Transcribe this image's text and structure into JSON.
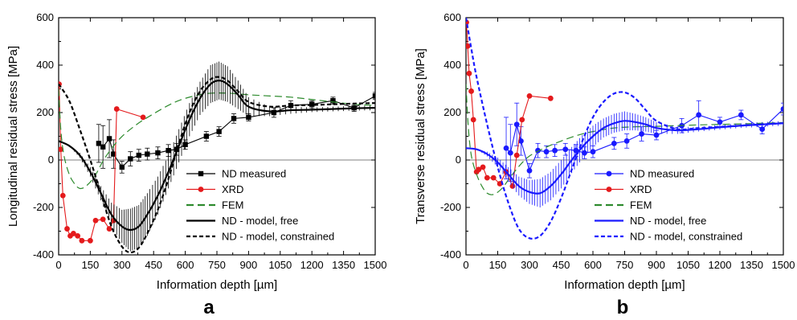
{
  "chart_data": [
    {
      "type": "line",
      "panel_label": "a",
      "xlabel": "Information depth [µm]",
      "ylabel": "Longitudinal residual stress [MPa]",
      "xlim": [
        0,
        1500
      ],
      "ylim": [
        -400,
        600
      ],
      "xticks": [
        0,
        150,
        300,
        450,
        600,
        750,
        900,
        1050,
        1200,
        1350,
        1500
      ],
      "yticks": [
        -400,
        -200,
        0,
        200,
        400,
        600
      ],
      "legend_position": "lower-right",
      "series": [
        {
          "name": "ND measured",
          "color": "#000000",
          "style": "solid",
          "marker": "square",
          "errorbars": true,
          "x": [
            190,
            210,
            240,
            260,
            300,
            340,
            380,
            420,
            470,
            520,
            560,
            600,
            700,
            760,
            830,
            900,
            1020,
            1100,
            1200,
            1300,
            1400,
            1500
          ],
          "y": [
            70,
            55,
            90,
            25,
            -30,
            5,
            20,
            25,
            30,
            40,
            45,
            65,
            100,
            120,
            175,
            180,
            200,
            230,
            235,
            250,
            220,
            270
          ],
          "err": [
            80,
            90,
            80,
            60,
            25,
            30,
            25,
            25,
            25,
            25,
            25,
            20,
            20,
            20,
            20,
            15,
            20,
            20,
            15,
            15,
            15,
            15
          ]
        },
        {
          "name": "XRD",
          "color": "#e41a1c",
          "style": "solid",
          "marker": "circle",
          "x": [
            2,
            10,
            20,
            40,
            55,
            70,
            90,
            110,
            150,
            175,
            210,
            240,
            260,
            275,
            400
          ],
          "y": [
            320,
            45,
            -150,
            -290,
            -320,
            -310,
            -320,
            -340,
            -340,
            -255,
            -250,
            -290,
            -255,
            215,
            180
          ]
        },
        {
          "name": "FEM",
          "color": "#2e8b2e",
          "style": "dashed",
          "x": [
            0,
            10,
            25,
            50,
            75,
            100,
            130,
            170,
            220,
            290,
            370,
            450,
            530,
            600,
            700,
            800,
            900,
            1000,
            1100,
            1200,
            1300,
            1400,
            1500
          ],
          "y": [
            300,
            130,
            20,
            -60,
            -100,
            -120,
            -110,
            -70,
            10,
            90,
            150,
            195,
            235,
            260,
            280,
            282,
            275,
            270,
            265,
            255,
            245,
            235,
            230
          ]
        },
        {
          "name": "ND - model, free",
          "color": "#000000",
          "style": "solid",
          "errorbars": true,
          "x": [
            0,
            50,
            100,
            150,
            200,
            250,
            300,
            340,
            380,
            420,
            470,
            520,
            570,
            620,
            670,
            720,
            760,
            800,
            850,
            900,
            1000,
            1100,
            1200,
            1300,
            1400,
            1500
          ],
          "y": [
            80,
            60,
            20,
            -50,
            -140,
            -230,
            -280,
            -295,
            -280,
            -230,
            -150,
            -50,
            60,
            170,
            260,
            320,
            335,
            320,
            275,
            225,
            205,
            210,
            212,
            215,
            218,
            220
          ],
          "err": [
            0,
            0,
            10,
            20,
            30,
            50,
            70,
            90,
            90,
            90,
            80,
            70,
            70,
            70,
            70,
            80,
            80,
            75,
            60,
            40,
            20,
            15,
            10,
            10,
            10,
            10
          ]
        },
        {
          "name": "ND - model, constrained",
          "color": "#000000",
          "style": "dashed",
          "x": [
            0,
            50,
            100,
            150,
            200,
            250,
            300,
            340,
            380,
            420,
            470,
            520,
            570,
            620,
            670,
            720,
            760,
            800,
            850,
            900,
            1000,
            1100,
            1200,
            1300,
            1400,
            1500
          ],
          "y": [
            320,
            250,
            130,
            0,
            -140,
            -280,
            -365,
            -390,
            -370,
            -310,
            -210,
            -80,
            70,
            200,
            290,
            340,
            350,
            335,
            290,
            245,
            225,
            230,
            232,
            235,
            238,
            240
          ]
        }
      ]
    },
    {
      "type": "line",
      "panel_label": "b",
      "xlabel": "Information depth [µm]",
      "ylabel": "Transverse residual stress [MPa]",
      "xlim": [
        0,
        1500
      ],
      "ylim": [
        -400,
        600
      ],
      "xticks": [
        0,
        150,
        300,
        450,
        600,
        750,
        900,
        1050,
        1200,
        1350,
        1500
      ],
      "yticks": [
        -400,
        -200,
        0,
        200,
        400,
        600
      ],
      "legend_position": "lower-right",
      "series": [
        {
          "name": "ND measured",
          "color": "#1a1aff",
          "style": "solid",
          "marker": "circle",
          "errorbars": true,
          "x": [
            190,
            210,
            240,
            260,
            300,
            340,
            380,
            420,
            470,
            520,
            560,
            600,
            700,
            760,
            830,
            900,
            1020,
            1100,
            1200,
            1300,
            1400,
            1500
          ],
          "y": [
            50,
            30,
            150,
            80,
            -45,
            40,
            35,
            40,
            45,
            40,
            30,
            35,
            70,
            80,
            110,
            105,
            145,
            190,
            160,
            190,
            130,
            215
          ],
          "err": [
            130,
            120,
            90,
            60,
            30,
            30,
            25,
            25,
            25,
            25,
            25,
            25,
            25,
            30,
            30,
            20,
            30,
            60,
            20,
            20,
            20,
            25
          ]
        },
        {
          "name": "XRD",
          "color": "#e41a1c",
          "style": "solid",
          "marker": "circle",
          "x": [
            2,
            8,
            15,
            25,
            35,
            50,
            60,
            80,
            100,
            130,
            160,
            190,
            220,
            240,
            265,
            300,
            400
          ],
          "y": [
            580,
            480,
            365,
            290,
            170,
            -50,
            -40,
            -30,
            -75,
            -75,
            -100,
            -50,
            -110,
            20,
            170,
            270,
            260
          ]
        },
        {
          "name": "FEM",
          "color": "#2e8b2e",
          "style": "dashed",
          "x": [
            0,
            10,
            25,
            50,
            75,
            100,
            130,
            170,
            220,
            290,
            370,
            450,
            530,
            600,
            700,
            800,
            900,
            1000,
            1100,
            1200,
            1300,
            1400,
            1500
          ],
          "y": [
            320,
            150,
            20,
            -60,
            -110,
            -140,
            -145,
            -120,
            -60,
            10,
            50,
            80,
            105,
            120,
            135,
            140,
            142,
            145,
            148,
            150,
            152,
            155,
            158
          ]
        },
        {
          "name": "ND - model, free",
          "color": "#1a1aff",
          "style": "solid",
          "errorbars": true,
          "x": [
            0,
            50,
            100,
            150,
            200,
            250,
            300,
            350,
            400,
            450,
            500,
            550,
            600,
            650,
            700,
            750,
            800,
            850,
            900,
            1000,
            1100,
            1200,
            1300,
            1400,
            1500
          ],
          "y": [
            50,
            45,
            25,
            -10,
            -60,
            -110,
            -135,
            -140,
            -110,
            -60,
            0,
            55,
            100,
            135,
            155,
            165,
            160,
            150,
            135,
            125,
            130,
            138,
            145,
            150,
            155
          ],
          "err": [
            0,
            0,
            10,
            20,
            30,
            40,
            50,
            60,
            60,
            60,
            55,
            50,
            45,
            40,
            40,
            40,
            35,
            30,
            25,
            15,
            10,
            10,
            10,
            10,
            10
          ]
        },
        {
          "name": "ND - model, constrained",
          "color": "#1a1aff",
          "style": "dashed",
          "x": [
            0,
            25,
            50,
            100,
            150,
            200,
            250,
            300,
            350,
            400,
            450,
            500,
            550,
            600,
            650,
            700,
            750,
            800,
            850,
            900,
            1000,
            1100,
            1200,
            1300,
            1400,
            1500
          ],
          "y": [
            600,
            470,
            350,
            150,
            -30,
            -180,
            -290,
            -330,
            -320,
            -260,
            -160,
            -40,
            80,
            180,
            245,
            280,
            285,
            260,
            210,
            165,
            130,
            135,
            140,
            145,
            150,
            155
          ]
        }
      ]
    }
  ]
}
